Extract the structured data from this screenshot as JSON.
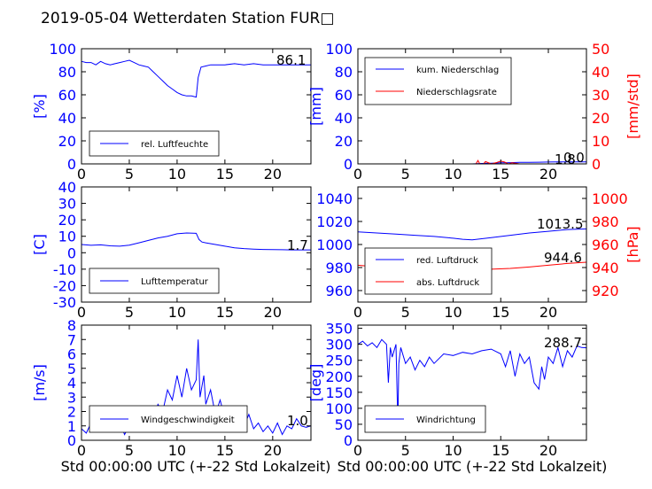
{
  "title": "2019-05-04 Wetterdaten Station FUR□",
  "colors": {
    "blue": "#0000ff",
    "red": "#ff0000",
    "black": "#000000"
  },
  "chart_data": [
    {
      "type": "line",
      "ylabel": "[%]",
      "xlim": [
        0,
        24
      ],
      "ylim": [
        0,
        100
      ],
      "xticks": [
        0,
        5,
        10,
        15,
        20
      ],
      "yticks": [
        0,
        20,
        40,
        60,
        80,
        100
      ],
      "current_value": "86.1",
      "series": [
        {
          "name": "rel. Luftfeuchte",
          "color": "#0000ff",
          "x": [
            0,
            0.5,
            1,
            1.5,
            2,
            2.5,
            3,
            3.5,
            4,
            4.5,
            5,
            5.5,
            6,
            6.5,
            7,
            7.5,
            8,
            8.5,
            9,
            9.5,
            10,
            10.5,
            11,
            11.5,
            12,
            12.2,
            12.5,
            13,
            13.5,
            14,
            15,
            16,
            17,
            18,
            19,
            20,
            21,
            22,
            23,
            24
          ],
          "values": [
            89,
            88,
            88,
            86,
            89,
            87,
            86,
            87,
            88,
            89,
            90,
            88,
            86,
            85,
            84,
            80,
            76,
            72,
            68,
            65,
            62,
            60,
            59,
            59,
            58,
            75,
            84,
            85,
            86,
            86,
            86,
            87,
            86,
            87,
            86,
            86,
            86,
            86,
            86,
            86
          ]
        }
      ],
      "legend": "lower-left"
    },
    {
      "type": "line",
      "ylabel": "[mm]",
      "ylabel_right": "[mm/std]",
      "xlim": [
        0,
        24
      ],
      "ylim": [
        0,
        100
      ],
      "ylim_right": [
        0,
        50
      ],
      "xticks": [
        0,
        5,
        10,
        15,
        20
      ],
      "yticks": [
        0,
        20,
        40,
        60,
        80,
        100
      ],
      "yticks_right": [
        0,
        10,
        20,
        30,
        40,
        50
      ],
      "current_value": "1.8",
      "current_value_2": "0.0",
      "series": [
        {
          "name": "kum. Niederschlag",
          "color": "#0000ff",
          "x": [
            0,
            12,
            12.5,
            13,
            14,
            15,
            16,
            17,
            18,
            19,
            20,
            21,
            22,
            23,
            24
          ],
          "values": [
            0,
            0,
            0.2,
            0.4,
            0.6,
            0.9,
            1.1,
            1.3,
            1.4,
            1.5,
            1.6,
            1.7,
            1.8,
            1.8,
            1.8
          ]
        },
        {
          "name": "Niederschlagsrate",
          "color": "#ff0000",
          "axis": "right",
          "x": [
            0,
            12.4,
            12.6,
            12.8,
            13.2,
            13.4,
            14,
            14.6,
            15,
            15.4,
            15.8,
            16.2,
            17,
            18,
            24
          ],
          "values": [
            0,
            0,
            1.5,
            0,
            0,
            1.0,
            0,
            0.6,
            1.2,
            0.8,
            0,
            0.5,
            0,
            0,
            0
          ]
        }
      ],
      "legend": "upper-left"
    },
    {
      "type": "line",
      "ylabel": "[C]",
      "xlim": [
        0,
        24
      ],
      "ylim": [
        -30,
        40
      ],
      "xticks": [
        0,
        5,
        10,
        15,
        20
      ],
      "yticks": [
        -30,
        -20,
        -10,
        0,
        10,
        20,
        30,
        40
      ],
      "current_value": "1.7",
      "series": [
        {
          "name": "Lufttemperatur",
          "color": "#0000ff",
          "x": [
            0,
            1,
            2,
            3,
            4,
            5,
            6,
            7,
            8,
            9,
            10,
            11,
            12,
            12.3,
            12.6,
            13,
            14,
            15,
            16,
            17,
            18,
            19,
            20,
            21,
            22,
            23,
            24
          ],
          "values": [
            5.0,
            4.5,
            4.8,
            4.2,
            4.0,
            4.6,
            6.0,
            7.5,
            9.0,
            10.0,
            11.5,
            12.0,
            11.8,
            8.0,
            6.5,
            6.0,
            5.0,
            4.0,
            3.0,
            2.5,
            2.2,
            2.0,
            1.9,
            1.8,
            1.7,
            1.7,
            1.7
          ]
        }
      ],
      "legend": "lower-left"
    },
    {
      "type": "line",
      "ylabel_right": "[hPa]",
      "xlim": [
        0,
        24
      ],
      "ylim": [
        950,
        1050
      ],
      "ylim_right": [
        910,
        1010
      ],
      "xticks": [
        0,
        5,
        10,
        15,
        20
      ],
      "yticks": [
        960,
        980,
        1000,
        1020,
        1040
      ],
      "yticks_right": [
        920,
        940,
        960,
        980,
        1000
      ],
      "current_value": "1013.5",
      "current_value_2": "944.6",
      "series": [
        {
          "name": "red. Luftdruck",
          "color": "#0000ff",
          "x": [
            0,
            2,
            4,
            6,
            8,
            10,
            11,
            12,
            13,
            14,
            16,
            18,
            20,
            22,
            24
          ],
          "values": [
            1011,
            1010,
            1009,
            1008,
            1007,
            1005.5,
            1004.5,
            1004,
            1005,
            1006,
            1008,
            1010,
            1011.5,
            1013,
            1013.5
          ]
        },
        {
          "name": "abs. Luftdruck",
          "color": "#ff0000",
          "axis": "right",
          "x": [
            0,
            2,
            4,
            6,
            8,
            10,
            12,
            14,
            16,
            18,
            20,
            22,
            24
          ],
          "values": [
            942,
            940.5,
            939.5,
            939.5,
            939,
            938.5,
            938.3,
            938.5,
            939.2,
            940.5,
            942,
            943.5,
            944.6
          ]
        }
      ],
      "legend": "lower-left"
    },
    {
      "type": "line",
      "ylabel": "[m/s]",
      "xlim": [
        0,
        24
      ],
      "ylim": [
        0,
        8
      ],
      "xticks": [
        0,
        5,
        10,
        15,
        20
      ],
      "yticks": [
        0,
        1,
        2,
        3,
        4,
        5,
        6,
        7,
        8
      ],
      "current_value": "1.0",
      "series": [
        {
          "name": "Windgeschwindigkeit",
          "color": "#0000ff",
          "x": [
            0,
            0.5,
            1,
            1.5,
            2,
            2.5,
            3,
            3.5,
            4,
            4.5,
            5,
            5.5,
            6,
            6.5,
            7,
            7.5,
            8,
            8.5,
            9,
            9.5,
            10,
            10.5,
            11,
            11.5,
            12,
            12.2,
            12.4,
            12.8,
            13,
            13.5,
            14,
            14.5,
            15,
            15.5,
            16,
            16.5,
            17,
            17.5,
            18,
            18.5,
            19,
            19.5,
            20,
            20.5,
            21,
            21.5,
            22,
            22.5,
            23,
            23.5,
            24
          ],
          "values": [
            0.8,
            0.5,
            1.2,
            0.9,
            1.5,
            0.8,
            1.0,
            0.6,
            1.3,
            0.4,
            1.0,
            0.7,
            1.6,
            1.0,
            2.0,
            1.5,
            2.5,
            2.0,
            3.5,
            2.8,
            4.5,
            3.0,
            5.0,
            3.5,
            4.2,
            7.0,
            3.0,
            4.5,
            2.5,
            3.5,
            1.8,
            2.8,
            1.5,
            2.2,
            1.5,
            2.0,
            1.0,
            1.8,
            0.8,
            1.2,
            0.6,
            1.0,
            0.5,
            1.2,
            0.4,
            1.0,
            0.8,
            1.5,
            1.0,
            0.9,
            1.0
          ]
        }
      ],
      "legend": "lower-left"
    },
    {
      "type": "line",
      "ylabel": "[deg]",
      "xlim": [
        0,
        24
      ],
      "ylim": [
        0,
        360
      ],
      "xticks": [
        0,
        5,
        10,
        15,
        20
      ],
      "yticks": [
        0,
        50,
        100,
        150,
        200,
        250,
        300,
        350
      ],
      "current_value": "288.7",
      "series": [
        {
          "name": "Windrichtung",
          "color": "#0000ff",
          "x": [
            0,
            0.5,
            1,
            1.5,
            2,
            2.5,
            3,
            3.2,
            3.4,
            3.6,
            4,
            4.2,
            4.3,
            4.5,
            5,
            5.5,
            6,
            6.5,
            7,
            7.5,
            8,
            9,
            10,
            11,
            12,
            13,
            14,
            15,
            15.5,
            16,
            16.5,
            17,
            17.5,
            18,
            18.5,
            19,
            19.3,
            19.6,
            20,
            20.5,
            21,
            21.5,
            22,
            22.5,
            23,
            23.5,
            24
          ],
          "values": [
            300,
            310,
            295,
            305,
            290,
            315,
            300,
            180,
            290,
            260,
            300,
            50,
            240,
            290,
            240,
            260,
            220,
            250,
            230,
            260,
            240,
            270,
            265,
            275,
            270,
            280,
            285,
            270,
            230,
            280,
            200,
            270,
            240,
            260,
            180,
            160,
            230,
            190,
            260,
            240,
            290,
            230,
            280,
            260,
            295,
            290,
            289
          ]
        }
      ],
      "legend": "lower-left"
    }
  ],
  "xlabel": "Std 00:00:00 UTC (+-22 Std Lokalzeit)"
}
